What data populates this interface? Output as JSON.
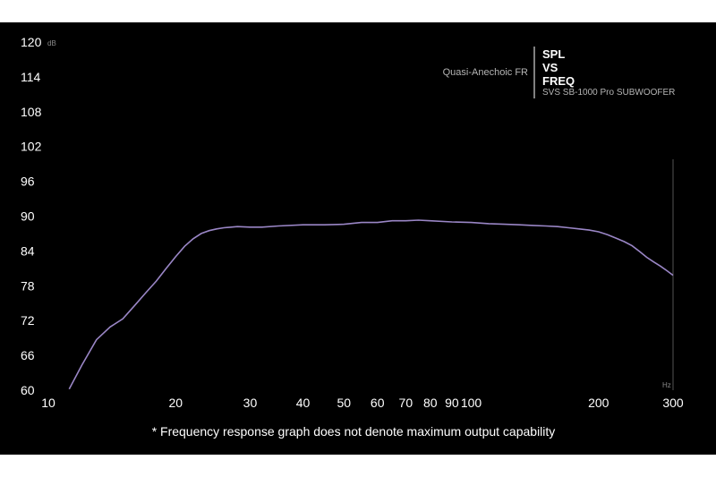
{
  "chart_data": {
    "type": "line",
    "title": "SPL VS FREQ",
    "title_lines": [
      "SPL",
      "VS",
      "FREQ"
    ],
    "subtitle": "SVS SB-1000 Pro SUBWOOFER",
    "legend": "Quasi-Anechoic FR",
    "ylabel_unit": "dB",
    "xlabel_unit": "Hz",
    "x_scale": "log",
    "xlim": [
      10,
      300
    ],
    "ylim": [
      60,
      120
    ],
    "x_ticks": [
      10,
      20,
      30,
      40,
      50,
      60,
      70,
      80,
      90,
      100,
      200,
      300
    ],
    "x_tick_labels": [
      "10",
      "20",
      "30",
      "40",
      "50",
      "60",
      "70",
      "80",
      "90",
      "100",
      "200",
      "300"
    ],
    "y_ticks": [
      60,
      66,
      72,
      78,
      84,
      90,
      96,
      102,
      108,
      114,
      120
    ],
    "y_tick_labels": [
      "60",
      "66",
      "72",
      "78",
      "84",
      "90",
      "96",
      "102",
      "108",
      "114",
      "120"
    ],
    "grid": false,
    "series": [
      {
        "name": "Quasi-Anechoic FR",
        "color": "#9a86c6",
        "x": [
          11.2,
          12,
          13,
          14,
          15,
          16,
          17,
          18,
          19,
          20,
          21,
          22,
          23,
          24,
          25,
          26,
          28,
          30,
          32,
          35,
          40,
          45,
          50,
          55,
          60,
          65,
          70,
          75,
          80,
          90,
          100,
          110,
          120,
          130,
          140,
          150,
          160,
          170,
          180,
          190,
          200,
          210,
          220,
          230,
          240,
          250,
          260,
          270,
          280,
          290,
          300
        ],
        "y": [
          60.2,
          64.3,
          68.7,
          70.9,
          72.3,
          74.6,
          76.8,
          78.8,
          81.0,
          83.0,
          84.8,
          86.1,
          87.0,
          87.5,
          87.8,
          88.0,
          88.2,
          88.1,
          88.1,
          88.3,
          88.5,
          88.5,
          88.6,
          88.9,
          88.9,
          89.2,
          89.2,
          89.3,
          89.2,
          89.0,
          88.9,
          88.7,
          88.6,
          88.5,
          88.4,
          88.3,
          88.2,
          88.0,
          87.8,
          87.6,
          87.3,
          86.8,
          86.2,
          85.6,
          84.9,
          83.9,
          82.9,
          82.1,
          81.4,
          80.6,
          79.8
        ]
      }
    ],
    "annotations": [
      "* Frequency response graph does not denote maximum output capability"
    ]
  }
}
